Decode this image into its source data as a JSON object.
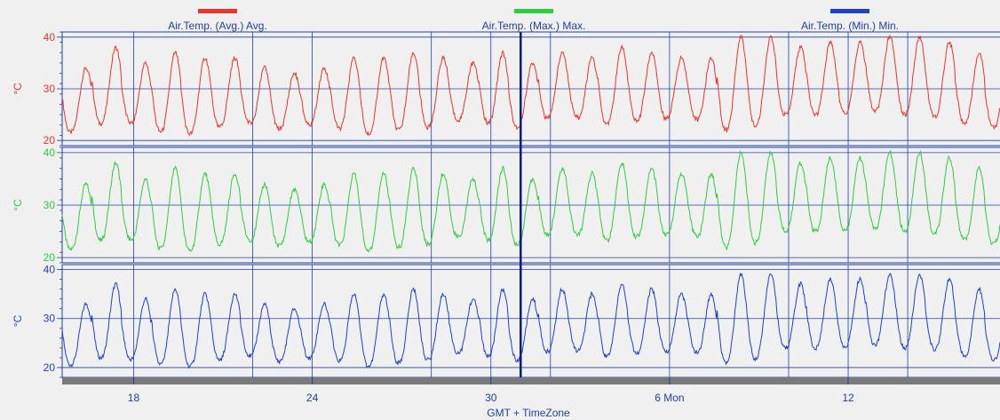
{
  "chart_data": {
    "type": "line",
    "x_axis": {
      "title": "GMT + TimeZone",
      "ticks": [
        "18",
        "24",
        "30",
        "6 Mon",
        "12"
      ],
      "range_days": [
        15.6,
        47.1
      ],
      "tick_days": [
        18,
        24,
        30,
        36,
        42
      ],
      "grid_days": [
        18,
        22,
        24,
        28,
        30,
        32,
        36,
        40,
        42,
        44
      ]
    },
    "cursor_day": 31,
    "colors": {
      "avg": "#e8352b",
      "max": "#2ecc40",
      "min": "#1f3fd0",
      "grid": "#1f3fa8",
      "panel_bg": "#f0f0f0"
    },
    "legend": [
      {
        "label": "Air.Temp. (Avg.) Avg.",
        "color": "#e8352b"
      },
      {
        "label": "Air.Temp. (Max.) Max.",
        "color": "#2ecc40"
      },
      {
        "label": "Air.Temp. (Min.) Min.",
        "color": "#1f3fd0"
      }
    ],
    "panels": [
      {
        "ylabel": "°C",
        "yticks": [
          20,
          30,
          40
        ],
        "ylim": [
          19,
          41
        ],
        "color": "#e8352b"
      },
      {
        "ylabel": "°C",
        "yticks": [
          20,
          30,
          40
        ],
        "ylim": [
          19,
          41
        ],
        "color": "#2ecc40"
      },
      {
        "ylabel": "°C",
        "yticks": [
          20,
          30,
          40
        ],
        "ylim": [
          18,
          41
        ],
        "color": "#1f3fd0"
      }
    ],
    "series": [
      {
        "name": "Air.Temp. (Avg.) Avg.",
        "daily_min": [
          21,
          23,
          24,
          22,
          21,
          22,
          24,
          22,
          23,
          23,
          21,
          22,
          22,
          24,
          24,
          22,
          24,
          25,
          23,
          24,
          24,
          25,
          22,
          22,
          25,
          25,
          25,
          26,
          25,
          25,
          24,
          22,
          24,
          24
        ],
        "daily_max": [
          34,
          38,
          35,
          37,
          36,
          36,
          34,
          33,
          34,
          36,
          36,
          37,
          36,
          35,
          37,
          35,
          37,
          36,
          38,
          37,
          36,
          36,
          40,
          40,
          38,
          39,
          39,
          40,
          40,
          39,
          37,
          35,
          37,
          39
        ]
      },
      {
        "name": "Air.Temp. (Max.) Max.",
        "daily_min": [
          21,
          23,
          24,
          22,
          21,
          22,
          24,
          22,
          23,
          23,
          21,
          22,
          22,
          24,
          24,
          22,
          24,
          25,
          23,
          24,
          24,
          25,
          22,
          22,
          25,
          25,
          25,
          26,
          25,
          25,
          24,
          22,
          24,
          24
        ],
        "daily_max": [
          34,
          38,
          35,
          37,
          36,
          36,
          34,
          33,
          34,
          36,
          36,
          37,
          36,
          35,
          37,
          35,
          37,
          36,
          38,
          37,
          36,
          36,
          40,
          40,
          38,
          39,
          39,
          40,
          40,
          39,
          37,
          35,
          37,
          39
        ]
      },
      {
        "name": "Air.Temp. (Min.) Min.",
        "daily_min": [
          20,
          22,
          22,
          21,
          20,
          21,
          23,
          21,
          22,
          22,
          20,
          21,
          21,
          23,
          23,
          21,
          23,
          24,
          22,
          23,
          23,
          24,
          21,
          21,
          24,
          24,
          24,
          25,
          24,
          24,
          23,
          21,
          23,
          23
        ],
        "daily_max": [
          33,
          37,
          34,
          36,
          35,
          35,
          33,
          32,
          33,
          35,
          35,
          36,
          35,
          34,
          36,
          34,
          36,
          35,
          37,
          36,
          35,
          35,
          39,
          39,
          37,
          38,
          38,
          39,
          39,
          38,
          36,
          34,
          36,
          38
        ]
      }
    ]
  }
}
